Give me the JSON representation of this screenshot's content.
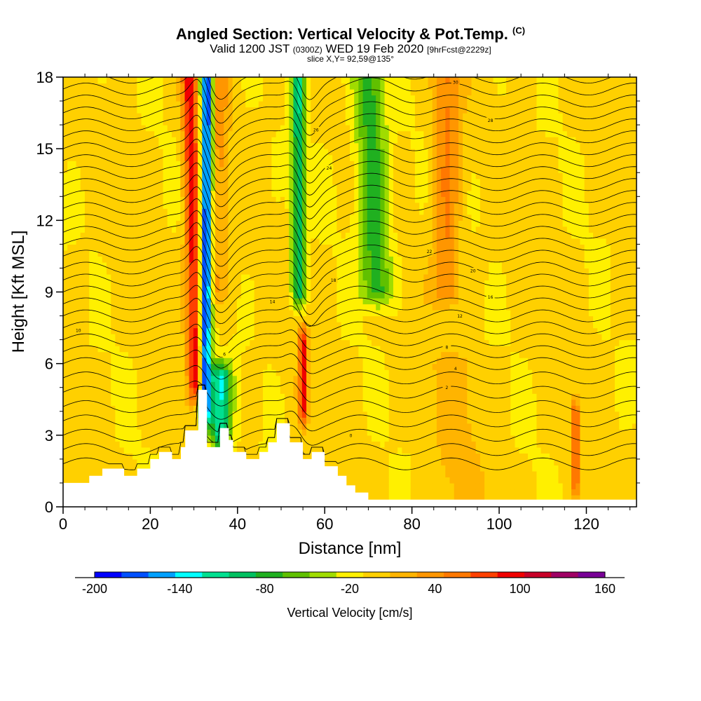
{
  "title": {
    "main": "Angled Section: Vertical Velocity & Pot.Temp.",
    "main_unit": "(C)",
    "valid_prefix": "Valid 1200 JST",
    "valid_z": "(0300Z)",
    "valid_date": "WED 19 Feb 2020",
    "forecast": "[9hrFcst@2229z]",
    "slice": "slice X,Y= 92,59@135°"
  },
  "chart_data": {
    "type": "heatmap",
    "xlabel": "Distance [nm]",
    "ylabel": "Height [Kft MSL]",
    "xlim": [
      0,
      131.5
    ],
    "ylim": [
      0,
      18
    ],
    "xticks": [
      "0",
      "20",
      "40",
      "60",
      "80",
      "100",
      "120"
    ],
    "yticks": [
      "0",
      "3",
      "6",
      "9",
      "12",
      "15",
      "18"
    ],
    "colorbar": {
      "label": "Vertical Velocity [cm/s]",
      "min": -200,
      "max": 160,
      "step": 20,
      "tick_labels": [
        "-200",
        "-140",
        "-80",
        "-20",
        "40",
        "100",
        "160"
      ],
      "colors": [
        "#0000ff",
        "#0050ff",
        "#00a0ff",
        "#00ffff",
        "#00e090",
        "#00c060",
        "#20b020",
        "#60c000",
        "#a0dc00",
        "#fff000",
        "#ffd000",
        "#ffb400",
        "#ff9600",
        "#ff7800",
        "#ff4000",
        "#f00000",
        "#c80028",
        "#a00064",
        "#780096"
      ]
    },
    "background_value": 5,
    "features": [
      {
        "kind": "updraft",
        "x": 30.5,
        "x_top": 29.0,
        "z_bottom": 5,
        "z_top": 18,
        "width": 1.8,
        "value": 110
      },
      {
        "kind": "downdraft",
        "x": 32.5,
        "x_top": 33.0,
        "z_bottom": 4,
        "z_top": 18,
        "width": 1.3,
        "value": -200
      },
      {
        "kind": "downdraft",
        "x": 36.0,
        "x_top": 36.0,
        "z_bottom": 3,
        "z_top": 5.5,
        "width": 2.5,
        "value": -120
      },
      {
        "kind": "updraft",
        "x": 35.5,
        "x_top": 36.0,
        "z_bottom": 9,
        "z_top": 18,
        "width": 2.0,
        "value": 40
      },
      {
        "kind": "downdraft",
        "x": 54.0,
        "x_top": 54.0,
        "z_bottom": 9,
        "z_top": 18,
        "width": 1.5,
        "value": -100
      },
      {
        "kind": "updraft",
        "x": 55.0,
        "x_top": 55.0,
        "z_bottom": 4,
        "z_top": 7,
        "width": 1.0,
        "value": 100
      },
      {
        "kind": "downdraft",
        "x": 72.0,
        "x_top": 70.0,
        "z_bottom": 9,
        "z_top": 18,
        "width": 3.5,
        "value": -80
      },
      {
        "kind": "updraft",
        "x": 88.0,
        "x_top": 88.0,
        "z_bottom": 9,
        "z_top": 18,
        "width": 3.0,
        "value": 60
      },
      {
        "kind": "updraft",
        "x": 90.0,
        "x_top": 90.0,
        "z_bottom": 0,
        "z_top": 6,
        "width": 6.0,
        "value": 20
      },
      {
        "kind": "updraft",
        "x": 117.5,
        "x_top": 117.5,
        "z_bottom": 1,
        "z_top": 4,
        "width": 0.8,
        "value": 90
      }
    ],
    "terrain": {
      "x": [
        0,
        6,
        6,
        9,
        9,
        14,
        14,
        17,
        17,
        20,
        20,
        22,
        22,
        25,
        25,
        27,
        27,
        28,
        28,
        31,
        31,
        33,
        33,
        36,
        36,
        38,
        38,
        39,
        39,
        42,
        42,
        45,
        45,
        47,
        47,
        49,
        49,
        52,
        52,
        55,
        55,
        57,
        57,
        60,
        60,
        63,
        63,
        65,
        65,
        67,
        67,
        70,
        70,
        131.5
      ],
      "z": [
        1.0,
        1.0,
        1.3,
        1.3,
        1.6,
        1.6,
        1.3,
        1.3,
        1.6,
        1.6,
        2.0,
        2.0,
        2.3,
        2.3,
        2.0,
        2.0,
        2.5,
        2.5,
        3.2,
        3.2,
        4.9,
        4.9,
        2.5,
        2.5,
        3.3,
        3.3,
        2.8,
        2.8,
        2.3,
        2.3,
        2.0,
        2.0,
        2.3,
        2.3,
        2.7,
        2.7,
        3.5,
        3.5,
        2.7,
        2.7,
        2.0,
        2.0,
        2.3,
        2.3,
        1.7,
        1.7,
        1.3,
        1.3,
        0.9,
        0.9,
        0.6,
        0.6,
        0.3,
        0.3
      ]
    },
    "theta_contours": {
      "base_levels": [
        1.8,
        2.4,
        3.0,
        3.6,
        4.2,
        4.8,
        5.4,
        6.0,
        6.5,
        7.0,
        7.5,
        8.0,
        8.5,
        9.0,
        9.5,
        10.0,
        10.5,
        11.0,
        11.5,
        12.0,
        12.5,
        13.0,
        13.5,
        14.0,
        14.5,
        15.0,
        15.5,
        16.0,
        16.5,
        17.0,
        17.5,
        18.0
      ],
      "labels": [
        {
          "text": "0",
          "x": 66,
          "z": 3.0
        },
        {
          "text": "2",
          "x": 88,
          "z": 5.0
        },
        {
          "text": "4",
          "x": 90,
          "z": 5.8
        },
        {
          "text": "6",
          "x": 37,
          "z": 6.4
        },
        {
          "text": "8",
          "x": 88,
          "z": 6.7
        },
        {
          "text": "10",
          "x": 3.5,
          "z": 7.4
        },
        {
          "text": "12",
          "x": 91,
          "z": 8.0
        },
        {
          "text": "14",
          "x": 48,
          "z": 8.6
        },
        {
          "text": "16",
          "x": 98,
          "z": 8.8
        },
        {
          "text": "18",
          "x": 62,
          "z": 9.5
        },
        {
          "text": "20",
          "x": 94,
          "z": 9.9
        },
        {
          "text": "22",
          "x": 84,
          "z": 10.7
        },
        {
          "text": "24",
          "x": 61,
          "z": 14.2
        },
        {
          "text": "26",
          "x": 58,
          "z": 15.8
        },
        {
          "text": "28",
          "x": 98,
          "z": 16.2
        },
        {
          "text": "30",
          "x": 90,
          "z": 17.8
        }
      ]
    }
  }
}
